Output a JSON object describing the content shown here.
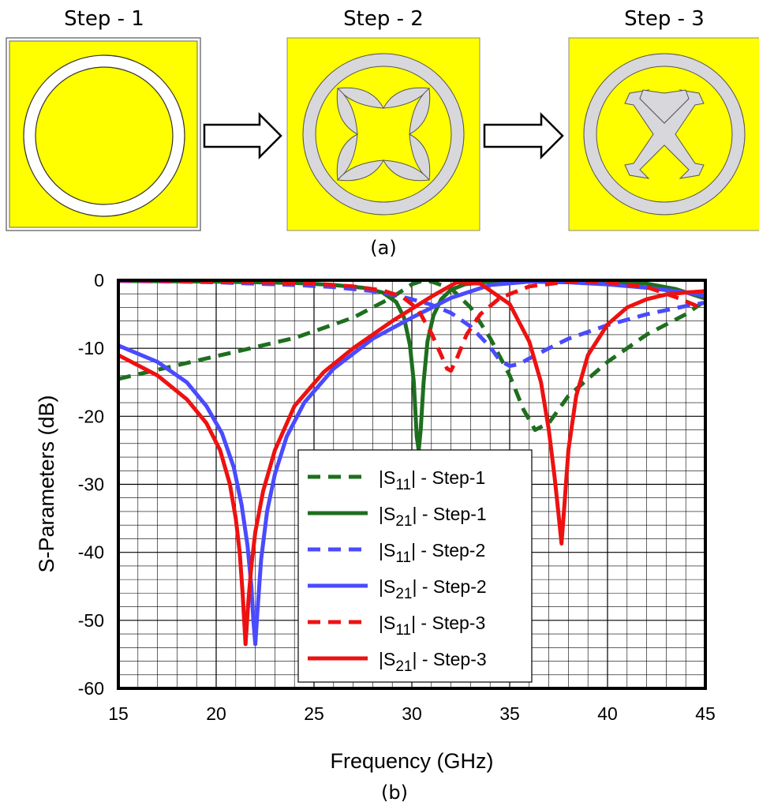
{
  "colors": {
    "patch_bg": "#ffff00",
    "metal": "#d8d8dc",
    "arrow_fill": "#ffffff",
    "s11_step1": "#1e6e1e",
    "s21_step1": "#1e6e1e",
    "s11_step2": "#4a4aff",
    "s21_step2": "#4a4aff",
    "s11_step3": "#ee1111",
    "s21_step3": "#ee1111",
    "grid": "#000000"
  },
  "steps": [
    {
      "label": "Step - 1",
      "design": "ring"
    },
    {
      "label": "Step - 2",
      "design": "ring-with-crescents"
    },
    {
      "label": "Step - 3",
      "design": "ring-with-cross"
    }
  ],
  "caption_a": "(a)",
  "caption_b": "(b)",
  "chart_data": {
    "type": "line",
    "title": "",
    "xlabel": "Frequency (GHz)",
    "ylabel": "S-Parameters (dB)",
    "xlim": [
      15,
      45
    ],
    "ylim": [
      -60,
      0
    ],
    "xticks": [
      15,
      20,
      25,
      30,
      35,
      40,
      45
    ],
    "yticks": [
      0,
      -10,
      -20,
      -30,
      -40,
      -50,
      -60
    ],
    "grid": true,
    "legend": "center-bottom",
    "series": [
      {
        "name_main": "|S",
        "name_sub": "11",
        "name_rest": "| - Step-1",
        "style": "dashed",
        "color_key": "s11_step1",
        "x": [
          15,
          18,
          21,
          24,
          27,
          29,
          30,
          30.5,
          31,
          32,
          33,
          34,
          35,
          35.7,
          36.3,
          37,
          38,
          40,
          42,
          44,
          45
        ],
        "y": [
          -14.5,
          -12.5,
          -10.5,
          -8.5,
          -5.5,
          -2.5,
          -0.6,
          -0.1,
          -0.2,
          -1.2,
          -4,
          -8.5,
          -14,
          -19,
          -22,
          -21,
          -17,
          -12,
          -8,
          -5,
          -3
        ]
      },
      {
        "name_main": "|S",
        "name_sub": "21",
        "name_rest": "| - Step-1",
        "style": "solid",
        "color_key": "s21_step1",
        "x": [
          15,
          20,
          24,
          26,
          27.5,
          28.5,
          29.2,
          29.6,
          29.9,
          30.1,
          30.25,
          30.35,
          30.45,
          30.6,
          30.8,
          31.1,
          31.5,
          32,
          32.7,
          34,
          36,
          38,
          40,
          42,
          43.5,
          45
        ],
        "y": [
          -0.1,
          -0.2,
          -0.4,
          -0.7,
          -1.1,
          -1.8,
          -3.2,
          -5.5,
          -9.5,
          -15,
          -23,
          -25,
          -22,
          -15,
          -9,
          -5.2,
          -2.8,
          -1.4,
          -0.6,
          -0.2,
          -0.1,
          -0.1,
          -0.2,
          -0.5,
          -1.3,
          -2.7
        ]
      },
      {
        "name_main": "|S",
        "name_sub": "11",
        "name_rest": "| - Step-2",
        "style": "dashed",
        "color_key": "s11_step2",
        "x": [
          15,
          18,
          20,
          22,
          24,
          26,
          28,
          29,
          30,
          31,
          32,
          33,
          34,
          34.5,
          35,
          35.5,
          36,
          37,
          38,
          40,
          42,
          44,
          45
        ],
        "y": [
          -0.1,
          -0.2,
          -0.3,
          -0.5,
          -0.7,
          -1,
          -1.6,
          -2.1,
          -2.8,
          -3.6,
          -4.8,
          -6.8,
          -9.8,
          -11.8,
          -12.6,
          -12.3,
          -11.5,
          -10,
          -8.6,
          -6.6,
          -5,
          -3.8,
          -3.3
        ]
      },
      {
        "name_main": "|S",
        "name_sub": "21",
        "name_rest": "| - Step-2",
        "style": "solid",
        "color_key": "s21_step2",
        "x": [
          15,
          17,
          18.5,
          19.5,
          20.3,
          20.9,
          21.3,
          21.6,
          21.8,
          21.9,
          22,
          22.1,
          22.3,
          22.6,
          23,
          23.6,
          24.5,
          26,
          28,
          30,
          32,
          34,
          36,
          38,
          40,
          42,
          44,
          45
        ],
        "y": [
          -9.6,
          -12,
          -15,
          -18.5,
          -22.5,
          -27.5,
          -33,
          -39,
          -45,
          -50,
          -53.5,
          -49,
          -41,
          -34,
          -28.5,
          -23,
          -18,
          -13,
          -8.6,
          -5.5,
          -2.6,
          -0.7,
          -0.2,
          -0.3,
          -0.6,
          -1.1,
          -1.8,
          -2.3
        ]
      },
      {
        "name_main": "|S",
        "name_sub": "11",
        "name_rest": "| - Step-3",
        "style": "dashed",
        "color_key": "s11_step3",
        "x": [
          15,
          18,
          22,
          25,
          27,
          28.5,
          29.5,
          30.3,
          31,
          31.5,
          31.8,
          32,
          32.3,
          32.8,
          33.5,
          34.5,
          36,
          38,
          40,
          42,
          43.5,
          45
        ],
        "y": [
          0,
          -0.1,
          -0.3,
          -0.5,
          -0.9,
          -1.5,
          -2.4,
          -4.2,
          -7.8,
          -11,
          -13,
          -13.3,
          -11.5,
          -8,
          -5,
          -2.6,
          -0.9,
          -0.2,
          -0.3,
          -1,
          -2.5,
          -4.3
        ]
      },
      {
        "name_main": "|S",
        "name_sub": "21",
        "name_rest": "| - Step-3",
        "style": "solid",
        "color_key": "s21_step3",
        "x": [
          15,
          17,
          18.5,
          19.5,
          20.2,
          20.7,
          21,
          21.2,
          21.35,
          21.5,
          21.65,
          21.8,
          22,
          22.4,
          23,
          24,
          25.5,
          27,
          29,
          31,
          32.3,
          33.5,
          35,
          36,
          36.6,
          37,
          37.3,
          37.5,
          37.65,
          37.8,
          38,
          38.4,
          39,
          40,
          41,
          42,
          43,
          44,
          45
        ],
        "y": [
          -11,
          -14,
          -17.5,
          -21,
          -25,
          -30,
          -35,
          -40,
          -46,
          -53.5,
          -47,
          -42,
          -37,
          -31,
          -25,
          -18.5,
          -13.5,
          -10,
          -6,
          -2.4,
          -0.3,
          -0.5,
          -3.5,
          -9,
          -15,
          -22,
          -29,
          -34.5,
          -38.7,
          -33,
          -25,
          -17,
          -11,
          -6.5,
          -4,
          -2.8,
          -2.1,
          -1.8,
          -1.6
        ]
      }
    ]
  }
}
